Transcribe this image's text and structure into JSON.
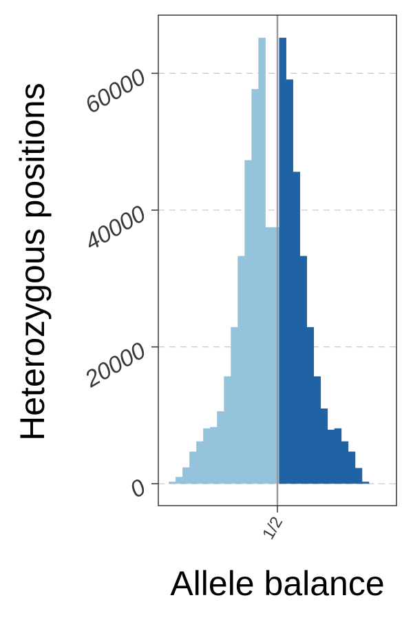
{
  "chart_data": {
    "type": "bar",
    "xlabel": "Allele balance",
    "ylabel": "Heterozygous positions",
    "x_tick_labels": [
      "1/2"
    ],
    "y_ticks": [
      0,
      20000,
      40000,
      60000
    ],
    "y_tick_labels": [
      "0",
      "20000",
      "40000",
      "60000"
    ],
    "ylim": [
      -3200,
      68500
    ],
    "xlim": [
      0,
      1
    ],
    "grid": "horizontal dashed",
    "colors": {
      "left": "#95c3dc",
      "right": "#1f63a5",
      "midline": "#999999",
      "grid": "#bdbdbd",
      "frame": "#333333"
    },
    "series": [
      {
        "name": "",
        "side": "left",
        "bins": [
          {
            "x0": 0.0435,
            "x1": 0.0725,
            "value": 300
          },
          {
            "x0": 0.0725,
            "x1": 0.1014,
            "value": 1000
          },
          {
            "x0": 0.1014,
            "x1": 0.1304,
            "value": 2400
          },
          {
            "x0": 0.1304,
            "x1": 0.1594,
            "value": 4700
          },
          {
            "x0": 0.1594,
            "x1": 0.1884,
            "value": 6200
          },
          {
            "x0": 0.1884,
            "x1": 0.2174,
            "value": 8100
          },
          {
            "x0": 0.2174,
            "x1": 0.2464,
            "value": 8300
          },
          {
            "x0": 0.2464,
            "x1": 0.2754,
            "value": 10600
          },
          {
            "x0": 0.2754,
            "x1": 0.3043,
            "value": 15700
          },
          {
            "x0": 0.3043,
            "x1": 0.3333,
            "value": 22900
          },
          {
            "x0": 0.3333,
            "x1": 0.3623,
            "value": 33300
          },
          {
            "x0": 0.3623,
            "x1": 0.3913,
            "value": 47300
          },
          {
            "x0": 0.3913,
            "x1": 0.4203,
            "value": 57700
          },
          {
            "x0": 0.4203,
            "x1": 0.4493,
            "value": 65200
          },
          {
            "x0": 0.4493,
            "x1": 0.4783,
            "value": 37500
          },
          {
            "x0": 0.4783,
            "x1": 0.5072,
            "value": 37500
          }
        ]
      },
      {
        "name": "",
        "side": "right",
        "bins": [
          {
            "x0": 0.5072,
            "x1": 0.5362,
            "value": 65200
          },
          {
            "x0": 0.5362,
            "x1": 0.5652,
            "value": 59100
          },
          {
            "x0": 0.5652,
            "x1": 0.5942,
            "value": 45600
          },
          {
            "x0": 0.5942,
            "x1": 0.6232,
            "value": 33300
          },
          {
            "x0": 0.6232,
            "x1": 0.6522,
            "value": 22900
          },
          {
            "x0": 0.6522,
            "x1": 0.6812,
            "value": 15700
          },
          {
            "x0": 0.6812,
            "x1": 0.7101,
            "value": 11000
          },
          {
            "x0": 0.7101,
            "x1": 0.7391,
            "value": 7900
          },
          {
            "x0": 0.7391,
            "x1": 0.7681,
            "value": 8100
          },
          {
            "x0": 0.7681,
            "x1": 0.7971,
            "value": 6200
          },
          {
            "x0": 0.7971,
            "x1": 0.8261,
            "value": 4700
          },
          {
            "x0": 0.8261,
            "x1": 0.8551,
            "value": 2300
          },
          {
            "x0": 0.8551,
            "x1": 0.8841,
            "value": 300
          }
        ]
      }
    ]
  }
}
